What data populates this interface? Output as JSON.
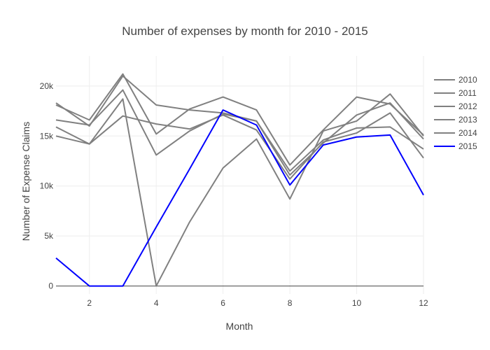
{
  "chart_data": {
    "type": "line",
    "title": "Number of expenses by month for 2010 - 2015",
    "xlabel": "Month",
    "ylabel": "Number of Expense Claims",
    "xlim": [
      1,
      12
    ],
    "ylim": [
      -800,
      23000
    ],
    "x_ticks": [
      2,
      4,
      6,
      8,
      10,
      12
    ],
    "y_ticks": [
      0,
      5000,
      10000,
      15000,
      20000
    ],
    "y_tick_labels": [
      "0",
      "5k",
      "10k",
      "15k",
      "20k"
    ],
    "grid": true,
    "legend_position": "top-right",
    "x": [
      1,
      2,
      3,
      4,
      5,
      6,
      7,
      8,
      9,
      10,
      11,
      12
    ],
    "series": [
      {
        "name": "2010",
        "color": "#808080",
        "values": [
          15900,
          14200,
          18700,
          0,
          6400,
          11800,
          14700,
          8700,
          15500,
          16500,
          19200,
          15000
        ]
      },
      {
        "name": "2011",
        "color": "#808080",
        "values": [
          18300,
          16000,
          21000,
          18100,
          17600,
          17300,
          16500,
          11500,
          14600,
          15800,
          15900,
          13700
        ]
      },
      {
        "name": "2012",
        "color": "#808080",
        "values": [
          18100,
          16600,
          21200,
          15200,
          17700,
          18900,
          17600,
          12100,
          15600,
          18900,
          18200,
          15100
        ]
      },
      {
        "name": "2013",
        "color": "#808080",
        "values": [
          16600,
          16100,
          19600,
          13100,
          15500,
          17200,
          16500,
          11100,
          14300,
          17100,
          18300,
          14700
        ]
      },
      {
        "name": "2014",
        "color": "#808080",
        "values": [
          15000,
          14200,
          17000,
          16200,
          15700,
          17100,
          15600,
          10700,
          14400,
          15300,
          17300,
          12800
        ]
      },
      {
        "name": "2015",
        "color": "#0000ff",
        "values": [
          2800,
          0,
          0,
          5900,
          11700,
          17600,
          16100,
          10100,
          14100,
          14900,
          15100,
          9100
        ]
      }
    ]
  }
}
